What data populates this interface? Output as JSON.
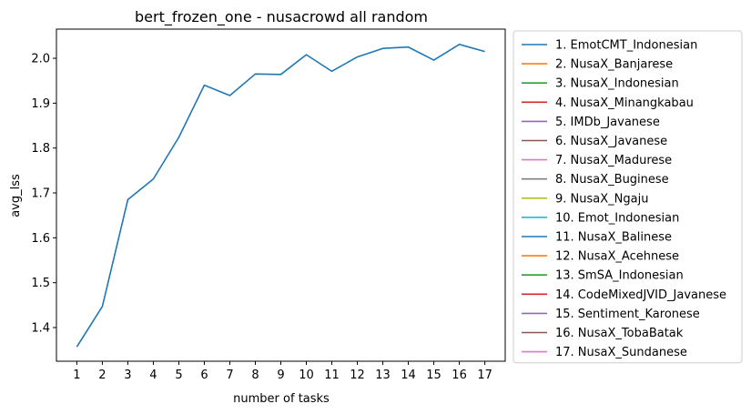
{
  "chart_data": {
    "type": "line",
    "title": "bert_frozen_one - nusacrowd all random",
    "xlabel": "number of tasks",
    "ylabel": "avg_lss",
    "x": [
      1,
      2,
      3,
      4,
      5,
      6,
      7,
      8,
      9,
      10,
      11,
      12,
      13,
      14,
      15,
      16,
      17
    ],
    "xticks": [
      "1",
      "2",
      "3",
      "4",
      "5",
      "6",
      "7",
      "8",
      "9",
      "10",
      "11",
      "12",
      "13",
      "14",
      "15",
      "16",
      "17"
    ],
    "yticks": [
      "1.4",
      "1.5",
      "1.6",
      "1.7",
      "1.8",
      "1.9",
      "2.0"
    ],
    "ytick_values": [
      1.4,
      1.5,
      1.6,
      1.7,
      1.8,
      1.9,
      2.0
    ],
    "xlim": [
      0.2,
      17.8
    ],
    "ylim": [
      1.325,
      2.065
    ],
    "grid": false,
    "legend_position": "outside-right",
    "series": [
      {
        "name": "1. EmotCMT_Indonesian",
        "color": "#1f77b4",
        "values": [
          1.357,
          1.447,
          1.685,
          1.731,
          1.824,
          1.94,
          1.917,
          1.965,
          1.964,
          2.008,
          1.971,
          2.003,
          2.022,
          2.025,
          1.996,
          2.031,
          2.015
        ]
      }
    ],
    "legend": [
      {
        "label": "1. EmotCMT_Indonesian",
        "color": "#1f77b4"
      },
      {
        "label": "2. NusaX_Banjarese",
        "color": "#ff7f0e"
      },
      {
        "label": "3. NusaX_Indonesian",
        "color": "#2ca02c"
      },
      {
        "label": "4. NusaX_Minangkabau",
        "color": "#d62728"
      },
      {
        "label": "5. IMDb_Javanese",
        "color": "#9467bd"
      },
      {
        "label": "6. NusaX_Javanese",
        "color": "#8c564b"
      },
      {
        "label": "7. NusaX_Madurese",
        "color": "#e377c2"
      },
      {
        "label": "8. NusaX_Buginese",
        "color": "#7f7f7f"
      },
      {
        "label": "9. NusaX_Ngaju",
        "color": "#bcbd22"
      },
      {
        "label": "10. Emot_Indonesian",
        "color": "#17becf"
      },
      {
        "label": "11. NusaX_Balinese",
        "color": "#1f77b4"
      },
      {
        "label": "12. NusaX_Acehnese",
        "color": "#ff7f0e"
      },
      {
        "label": "13. SmSA_Indonesian",
        "color": "#2ca02c"
      },
      {
        "label": "14. CodeMixedJVID_Javanese",
        "color": "#d62728"
      },
      {
        "label": "15. Sentiment_Karonese",
        "color": "#9467bd"
      },
      {
        "label": "16. NusaX_TobaBatak",
        "color": "#8c564b"
      },
      {
        "label": "17. NusaX_Sundanese",
        "color": "#e377c2"
      }
    ]
  }
}
